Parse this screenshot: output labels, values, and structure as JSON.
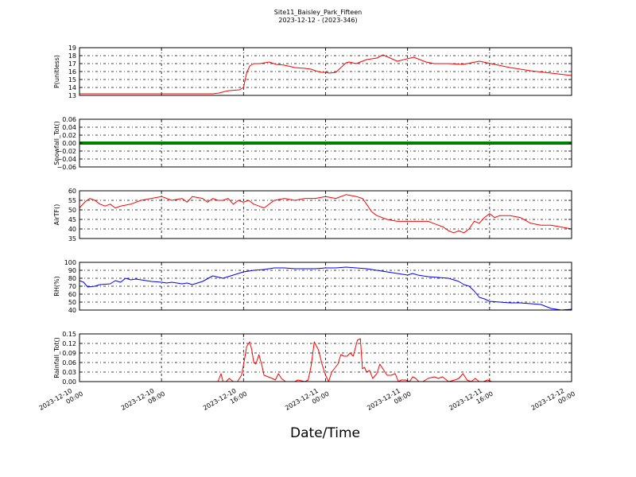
{
  "header": {
    "title": "Site11_Baisley_Park_Fifteen",
    "subtitle": "2023-12-12 - (2023-346)"
  },
  "xaxis": {
    "label": "Date/Time",
    "ticks": [
      {
        "line1": "2023-12-10",
        "line2": "00:00"
      },
      {
        "line1": "2023-12-10",
        "line2": "08:00"
      },
      {
        "line1": "2023-12-10",
        "line2": "16:00"
      },
      {
        "line1": "2023-12-11",
        "line2": "00:00"
      },
      {
        "line1": "2023-12-11",
        "line2": "08:00"
      },
      {
        "line1": "2023-12-11",
        "line2": "16:00"
      },
      {
        "line1": "2023-12-12",
        "line2": "00:00"
      }
    ]
  },
  "colors": {
    "red": "#ff0000",
    "green": "#008000",
    "blue": "#0000ff"
  },
  "chart_data": [
    {
      "type": "line",
      "ylabel": "P(unitless)",
      "ylim": [
        13,
        19
      ],
      "yticks": [
        "13",
        "14",
        "15",
        "16",
        "17",
        "18",
        "19"
      ],
      "grid": true,
      "series": [
        {
          "color": "#ff0000",
          "x_hours": [
            0,
            4,
            8,
            12,
            13,
            13.6,
            14.2,
            14.6,
            15.6,
            16,
            16.3,
            16.6,
            17,
            17.6,
            18.5,
            19.2,
            20,
            21,
            22,
            22.6,
            23,
            23.6,
            24,
            24.4,
            25,
            26,
            26.3,
            27,
            27.4,
            28,
            28.5,
            29,
            29.6,
            31,
            32.6,
            33.8,
            34.6,
            36,
            37.4,
            39,
            40.5,
            42,
            44,
            46,
            48
          ],
          "values": [
            13.2,
            13.2,
            13.2,
            13.2,
            13.2,
            13.3,
            13.5,
            13.6,
            13.7,
            14.0,
            15.8,
            16.7,
            17.0,
            17.0,
            17.2,
            16.9,
            16.8,
            16.5,
            16.4,
            16.3,
            16.1,
            15.9,
            15.9,
            15.8,
            15.9,
            17.1,
            17.2,
            17.0,
            17.2,
            17.5,
            17.6,
            17.7,
            18.1,
            17.3,
            17.8,
            17.2,
            17.0,
            17.0,
            16.9,
            17.3,
            16.9,
            16.5,
            16.1,
            15.8,
            15.5
          ]
        }
      ]
    },
    {
      "type": "line",
      "ylabel": "Snowfall_Tot()",
      "ylim": [
        -0.06,
        0.06
      ],
      "yticks": [
        "−0.06",
        "−0.04",
        "−0.02",
        "0.00",
        "0.02",
        "0.04",
        "0.06"
      ],
      "grid": true,
      "series": [
        {
          "color": "#008000",
          "x_hours": [
            0,
            48
          ],
          "values": [
            0.0,
            0.0
          ]
        }
      ]
    },
    {
      "type": "line",
      "ylabel": "AirTF()",
      "ylim": [
        35,
        60
      ],
      "yticks": [
        "35",
        "40",
        "45",
        "50",
        "55",
        "60"
      ],
      "grid": true,
      "series": [
        {
          "color": "#ff0000",
          "x_hours": [
            0,
            0.5,
            1,
            1.5,
            2,
            2.5,
            3,
            3.5,
            4,
            5,
            6,
            7,
            8,
            9,
            10,
            10.5,
            11,
            12,
            12.5,
            13,
            13.5,
            14,
            14.5,
            15,
            15.5,
            16,
            16.5,
            17,
            17.5,
            18,
            19,
            20,
            21,
            22,
            23,
            24,
            25,
            26,
            27,
            27.6,
            28,
            28.5,
            29,
            30,
            31,
            32,
            33,
            34,
            34.5,
            35,
            35.5,
            36,
            36.5,
            37,
            37.5,
            38,
            38.5,
            39,
            39.5,
            40,
            40.5,
            41,
            42,
            43,
            44,
            45,
            46,
            47,
            48
          ],
          "values": [
            51,
            54,
            56,
            55,
            53,
            52,
            53,
            51,
            52,
            53,
            55,
            56,
            57,
            55,
            56,
            54,
            57,
            56,
            54,
            56,
            55,
            55,
            56,
            53,
            55,
            54,
            55,
            53,
            52,
            51,
            55,
            56,
            55,
            56,
            56,
            57,
            56,
            58,
            57,
            56,
            53,
            49,
            47,
            45,
            44,
            44,
            44,
            44,
            43,
            42,
            41,
            39,
            38,
            39,
            38,
            40,
            44,
            43,
            46,
            48,
            46,
            47,
            47,
            46,
            43,
            42,
            42,
            41,
            40
          ]
        }
      ]
    },
    {
      "type": "line",
      "ylabel": "RH(%)",
      "ylim": [
        40,
        100
      ],
      "yticks": [
        "40",
        "50",
        "60",
        "70",
        "80",
        "90",
        "100"
      ],
      "grid": true,
      "series": [
        {
          "color": "#0000ff",
          "x_hours": [
            0,
            0.4,
            0.8,
            1.5,
            2,
            3,
            3.5,
            4,
            4.5,
            5,
            5.5,
            6,
            7,
            8,
            8.5,
            9,
            10,
            10.5,
            11,
            11.5,
            12,
            13,
            14,
            15,
            16,
            17,
            18,
            19,
            20,
            21,
            22,
            23,
            24,
            25,
            26,
            27,
            28,
            29,
            30,
            31,
            31.5,
            32,
            32.5,
            33,
            34,
            35,
            36,
            36.5,
            37,
            37.5,
            38,
            38.5,
            39,
            39.5,
            40,
            41,
            42,
            43,
            44,
            45,
            46,
            47,
            48
          ],
          "values": [
            77,
            75,
            69,
            70,
            72,
            73,
            77,
            75,
            80,
            78,
            79,
            78,
            76,
            75,
            74,
            75,
            73,
            74,
            72,
            74,
            76,
            83,
            80,
            84,
            88,
            90,
            91,
            93,
            93,
            92,
            92,
            92,
            93,
            93,
            94,
            93,
            92,
            90,
            88,
            86,
            85,
            84,
            86,
            84,
            82,
            81,
            80,
            78,
            76,
            72,
            70,
            64,
            56,
            54,
            51,
            50,
            49,
            49,
            48,
            47,
            42,
            40,
            41
          ]
        }
      ]
    },
    {
      "type": "line",
      "ylabel": "Rainfall_Tot()",
      "ylim": [
        0.0,
        0.15
      ],
      "yticks": [
        "0.00",
        "0.03",
        "0.06",
        "0.09",
        "0.12",
        "0.15"
      ],
      "grid": true,
      "series": [
        {
          "color": "#ff0000",
          "x_hours": [
            0,
            13.5,
            13.8,
            14,
            14.3,
            14.6,
            15,
            15.4,
            15.8,
            16.1,
            16.3,
            16.6,
            16.8,
            17,
            17.2,
            17.5,
            17.8,
            18,
            18.4,
            18.8,
            19.1,
            19.4,
            19.7,
            20.1,
            20.5,
            21,
            21.3,
            22,
            22.3,
            22.6,
            22.9,
            23.3,
            23.7,
            24,
            24.3,
            24.6,
            25.2,
            25.5,
            25.8,
            26.1,
            26.4,
            26.7,
            27.1,
            27.4,
            27.6,
            27.8,
            28,
            28.3,
            28.6,
            29,
            29.3,
            29.6,
            30,
            30.4,
            30.8,
            31.1,
            31.4,
            31.8,
            32.2,
            32.5,
            32.8,
            33.1,
            33.5,
            34,
            34.6,
            35,
            35.4,
            36,
            36.6,
            37,
            37.4,
            37.8,
            38.2,
            38.6,
            39,
            39.4,
            39.8,
            40.2,
            48
          ],
          "values": [
            0,
            0,
            0.025,
            0.0,
            0.0,
            0.01,
            0.0,
            0.0,
            0.02,
            0.07,
            0.11,
            0.125,
            0.1,
            0.06,
            0.055,
            0.085,
            0.05,
            0.02,
            0.015,
            0.01,
            0.005,
            0.025,
            0.01,
            0.0,
            0.0,
            0.0,
            0.005,
            0.0,
            0.005,
            0.05,
            0.125,
            0.1,
            0.05,
            0.02,
            0.0,
            0.03,
            0.055,
            0.085,
            0.08,
            0.08,
            0.09,
            0.08,
            0.13,
            0.135,
            0.04,
            0.045,
            0.03,
            0.035,
            0.01,
            0.025,
            0.055,
            0.04,
            0.02,
            0.02,
            0.025,
            0.0,
            0.005,
            0.005,
            0.0,
            0.015,
            0.01,
            0.0,
            0.0,
            0.01,
            0.015,
            0.01,
            0.015,
            0.0,
            0.005,
            0.01,
            0.025,
            0.005,
            0.0,
            0.01,
            0.0,
            0.0,
            0.005,
            0.0,
            0.0
          ]
        }
      ]
    }
  ]
}
